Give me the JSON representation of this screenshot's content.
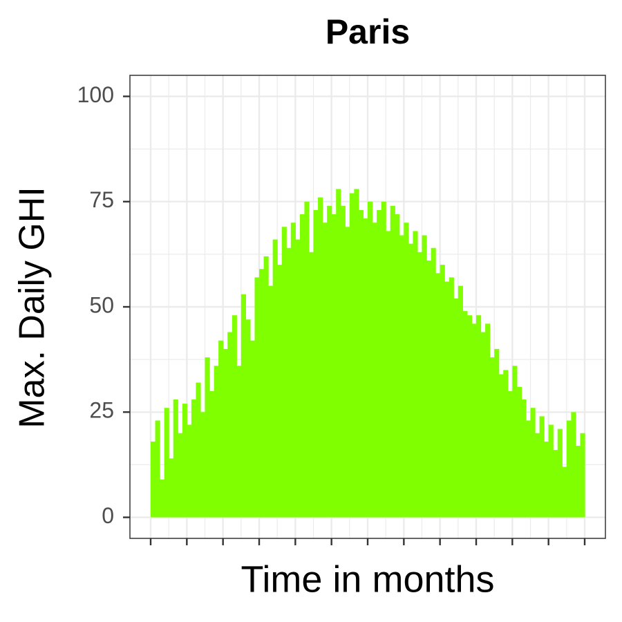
{
  "chart_data": {
    "type": "bar",
    "title": "Paris",
    "x_label": "Time in months",
    "y_label": "Max. Daily GHI",
    "categories": [
      null,
      null,
      null,
      null,
      null,
      null,
      null,
      null,
      null,
      null,
      null,
      null,
      null,
      null,
      null,
      null,
      null,
      null,
      null,
      null,
      null,
      null,
      null,
      null,
      null,
      null,
      null,
      null,
      null,
      null,
      null,
      null,
      null,
      null,
      null,
      null,
      null,
      null,
      null,
      null,
      null,
      null,
      null,
      null,
      null,
      null,
      null,
      null,
      null,
      null,
      null,
      null,
      null,
      null,
      null,
      null,
      null,
      null,
      null,
      null,
      null,
      null,
      null,
      null,
      null,
      null,
      null,
      null,
      null,
      null,
      null,
      null,
      null,
      null,
      null,
      null,
      null,
      null,
      null,
      null,
      null,
      null,
      null,
      null,
      null,
      null,
      null,
      null,
      null,
      null,
      null,
      null,
      null,
      null,
      null,
      null
    ],
    "values": [
      18,
      23,
      9,
      26,
      14,
      28,
      20,
      27,
      22,
      28,
      32,
      25,
      38,
      30,
      36,
      42,
      40,
      44,
      48,
      36,
      53,
      47,
      42,
      57,
      59,
      62,
      55,
      66,
      60,
      69,
      64,
      70,
      66,
      72,
      75,
      63,
      73,
      76,
      70,
      74,
      72,
      78,
      74,
      69,
      77,
      78,
      73,
      71,
      75,
      70,
      73,
      75,
      68,
      74,
      72,
      67,
      70,
      65,
      68,
      63,
      67,
      61,
      64,
      58,
      60,
      56,
      57,
      52,
      55,
      49,
      48,
      46,
      48,
      44,
      46,
      38,
      40,
      34,
      35,
      30,
      36,
      31,
      28,
      23,
      26,
      20,
      24,
      18,
      22,
      16,
      21,
      12,
      23,
      25,
      17,
      20
    ],
    "color": "#80ff00",
    "ylim": [
      -5,
      105
    ],
    "yticks": [
      0,
      25,
      50,
      75,
      100
    ],
    "grid": true
  }
}
